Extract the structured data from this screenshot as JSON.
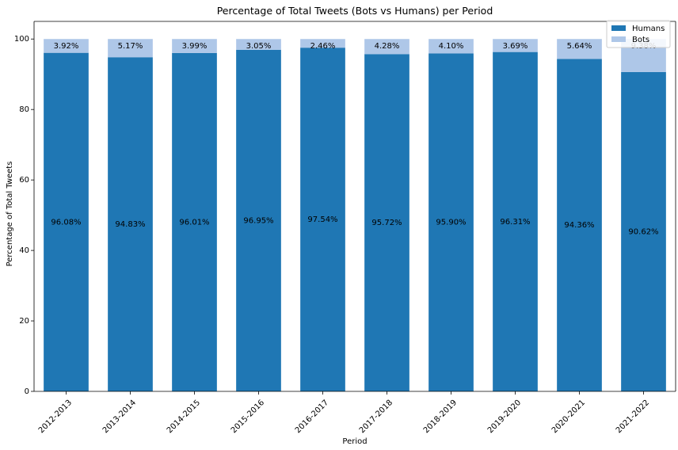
{
  "chart_data": {
    "type": "bar",
    "stacked": true,
    "title": "Percentage of Total Tweets (Bots vs Humans) per Period",
    "xlabel": "Period",
    "ylabel": "Percentage of Total Tweets",
    "ylim": [
      0,
      105
    ],
    "yticks": [
      0,
      20,
      40,
      60,
      80,
      100
    ],
    "grid": false,
    "legend_position": "top-right",
    "categories": [
      "2012-2013",
      "2013-2014",
      "2014-2015",
      "2015-2016",
      "2016-2017",
      "2017-2018",
      "2018-2019",
      "2019-2020",
      "2020-2021",
      "2021-2022"
    ],
    "series": [
      {
        "name": "Humans",
        "color": "#1f77b4",
        "values": [
          96.08,
          94.83,
          96.01,
          96.95,
          97.54,
          95.72,
          95.9,
          96.31,
          94.36,
          90.62
        ],
        "labels": [
          "96.08%",
          "94.83%",
          "96.01%",
          "96.95%",
          "97.54%",
          "95.72%",
          "95.90%",
          "96.31%",
          "94.36%",
          "90.62%"
        ]
      },
      {
        "name": "Bots",
        "color": "#aec7e8",
        "values": [
          3.92,
          5.17,
          3.99,
          3.05,
          2.46,
          4.28,
          4.1,
          3.69,
          5.64,
          9.38
        ],
        "labels": [
          "3.92%",
          "5.17%",
          "3.99%",
          "3.05%",
          "2.46%",
          "4.28%",
          "4.10%",
          "3.69%",
          "5.64%",
          "9.38%"
        ]
      }
    ]
  }
}
